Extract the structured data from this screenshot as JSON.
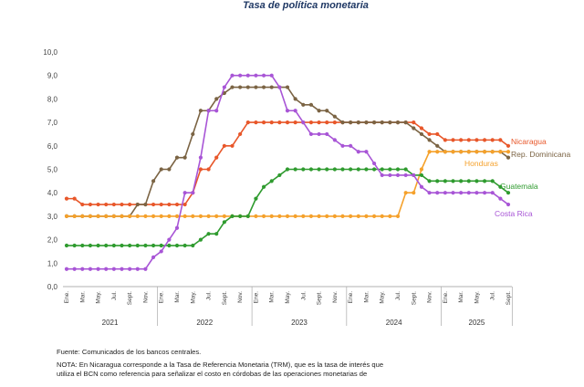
{
  "chart_data": {
    "type": "line",
    "title": "Tasa de política monetaria",
    "xlabel": "",
    "ylabel": "",
    "ylim": [
      0,
      10
    ],
    "yticks": [
      "0,0",
      "1,0",
      "2,0",
      "3,0",
      "4,0",
      "5,0",
      "6,0",
      "7,0",
      "8,0",
      "9,0",
      "10,0"
    ],
    "months": [
      "2021-01",
      "2021-02",
      "2021-03",
      "2021-04",
      "2021-05",
      "2021-06",
      "2021-07",
      "2021-08",
      "2021-09",
      "2021-10",
      "2021-11",
      "2021-12",
      "2022-01",
      "2022-02",
      "2022-03",
      "2022-04",
      "2022-05",
      "2022-06",
      "2022-07",
      "2022-08",
      "2022-09",
      "2022-10",
      "2022-11",
      "2022-12",
      "2023-01",
      "2023-02",
      "2023-03",
      "2023-04",
      "2023-05",
      "2023-06",
      "2023-07",
      "2023-08",
      "2023-09",
      "2023-10",
      "2023-11",
      "2023-12",
      "2024-01",
      "2024-02",
      "2024-03",
      "2024-04",
      "2024-05",
      "2024-06",
      "2024-07",
      "2024-08",
      "2024-09",
      "2024-10",
      "2024-11",
      "2024-12",
      "2025-01",
      "2025-02",
      "2025-03",
      "2025-04",
      "2025-05",
      "2025-06",
      "2025-07",
      "2025-08",
      "2025-09"
    ],
    "x_tick_labels": [
      {
        "index": 0,
        "label": "Ene."
      },
      {
        "index": 2,
        "label": "Mar."
      },
      {
        "index": 4,
        "label": "May."
      },
      {
        "index": 6,
        "label": "Jul."
      },
      {
        "index": 8,
        "label": "Sept."
      },
      {
        "index": 10,
        "label": "Nov."
      },
      {
        "index": 12,
        "label": "Ene."
      },
      {
        "index": 14,
        "label": "Mar."
      },
      {
        "index": 16,
        "label": "May."
      },
      {
        "index": 18,
        "label": "Jul."
      },
      {
        "index": 20,
        "label": "Sept."
      },
      {
        "index": 22,
        "label": "Nov."
      },
      {
        "index": 24,
        "label": "Ene."
      },
      {
        "index": 26,
        "label": "Mar."
      },
      {
        "index": 28,
        "label": "May."
      },
      {
        "index": 30,
        "label": "Jul."
      },
      {
        "index": 32,
        "label": "Sept."
      },
      {
        "index": 34,
        "label": "Nov."
      },
      {
        "index": 36,
        "label": "Ene."
      },
      {
        "index": 38,
        "label": "Mar."
      },
      {
        "index": 40,
        "label": "May."
      },
      {
        "index": 42,
        "label": "Jul."
      },
      {
        "index": 44,
        "label": "Sept."
      },
      {
        "index": 46,
        "label": "Nov."
      },
      {
        "index": 48,
        "label": "Ene."
      },
      {
        "index": 50,
        "label": "Mar."
      },
      {
        "index": 52,
        "label": "May."
      },
      {
        "index": 54,
        "label": "Jul."
      },
      {
        "index": 56,
        "label": "Sept."
      }
    ],
    "years": [
      {
        "label": "2021",
        "start": 0,
        "end": 11
      },
      {
        "label": "2022",
        "start": 12,
        "end": 23
      },
      {
        "label": "2023",
        "start": 24,
        "end": 35
      },
      {
        "label": "2024",
        "start": 36,
        "end": 47
      },
      {
        "label": "2025",
        "start": 48,
        "end": 56
      }
    ],
    "grid": false,
    "legend": "inline labels at line ends (right)",
    "series": [
      {
        "name": "Nicaragua",
        "color": "#e8572a",
        "values": [
          3.75,
          3.75,
          3.5,
          3.5,
          3.5,
          3.5,
          3.5,
          3.5,
          3.5,
          3.5,
          3.5,
          3.5,
          3.5,
          3.5,
          3.5,
          3.5,
          4.0,
          5.0,
          5.0,
          5.5,
          6.0,
          6.0,
          6.5,
          7.0,
          7.0,
          7.0,
          7.0,
          7.0,
          7.0,
          7.0,
          7.0,
          7.0,
          7.0,
          7.0,
          7.0,
          7.0,
          7.0,
          7.0,
          7.0,
          7.0,
          7.0,
          7.0,
          7.0,
          7.0,
          7.0,
          6.75,
          6.5,
          6.5,
          6.25,
          6.25,
          6.25,
          6.25,
          6.25,
          6.25,
          6.25,
          6.25,
          6.0
        ]
      },
      {
        "name": "Rep. Dominicana",
        "color": "#7b6444",
        "values": [
          3.0,
          3.0,
          3.0,
          3.0,
          3.0,
          3.0,
          3.0,
          3.0,
          3.0,
          3.5,
          3.5,
          4.5,
          5.0,
          5.0,
          5.5,
          5.5,
          6.5,
          7.5,
          7.5,
          8.0,
          8.25,
          8.5,
          8.5,
          8.5,
          8.5,
          8.5,
          8.5,
          8.5,
          8.5,
          8.0,
          7.75,
          7.75,
          7.5,
          7.5,
          7.25,
          7.0,
          7.0,
          7.0,
          7.0,
          7.0,
          7.0,
          7.0,
          7.0,
          7.0,
          6.75,
          6.5,
          6.25,
          6.0,
          5.75,
          5.75,
          5.75,
          5.75,
          5.75,
          5.75,
          5.75,
          5.75,
          5.5
        ]
      },
      {
        "name": "Honduras",
        "color": "#f5a12b",
        "values": [
          3.0,
          3.0,
          3.0,
          3.0,
          3.0,
          3.0,
          3.0,
          3.0,
          3.0,
          3.0,
          3.0,
          3.0,
          3.0,
          3.0,
          3.0,
          3.0,
          3.0,
          3.0,
          3.0,
          3.0,
          3.0,
          3.0,
          3.0,
          3.0,
          3.0,
          3.0,
          3.0,
          3.0,
          3.0,
          3.0,
          3.0,
          3.0,
          3.0,
          3.0,
          3.0,
          3.0,
          3.0,
          3.0,
          3.0,
          3.0,
          3.0,
          3.0,
          3.0,
          4.0,
          4.0,
          5.0,
          5.75,
          5.75,
          5.75,
          5.75,
          5.75,
          5.75,
          5.75,
          5.75,
          5.75,
          5.75,
          5.75
        ]
      },
      {
        "name": "Guatemala",
        "color": "#2f9b2f",
        "values": [
          1.75,
          1.75,
          1.75,
          1.75,
          1.75,
          1.75,
          1.75,
          1.75,
          1.75,
          1.75,
          1.75,
          1.75,
          1.75,
          1.75,
          1.75,
          1.75,
          1.75,
          2.0,
          2.25,
          2.25,
          2.75,
          3.0,
          3.0,
          3.0,
          3.75,
          4.25,
          4.5,
          4.75,
          5.0,
          5.0,
          5.0,
          5.0,
          5.0,
          5.0,
          5.0,
          5.0,
          5.0,
          5.0,
          5.0,
          5.0,
          5.0,
          5.0,
          5.0,
          5.0,
          4.75,
          4.75,
          4.5,
          4.5,
          4.5,
          4.5,
          4.5,
          4.5,
          4.5,
          4.5,
          4.5,
          4.25,
          4.0
        ]
      },
      {
        "name": "Costa Rica",
        "color": "#a855d6",
        "values": [
          0.75,
          0.75,
          0.75,
          0.75,
          0.75,
          0.75,
          0.75,
          0.75,
          0.75,
          0.75,
          0.75,
          1.25,
          1.5,
          2.0,
          2.5,
          4.0,
          4.0,
          5.5,
          7.5,
          7.5,
          8.5,
          9.0,
          9.0,
          9.0,
          9.0,
          9.0,
          9.0,
          8.5,
          7.5,
          7.5,
          7.0,
          6.5,
          6.5,
          6.5,
          6.25,
          6.0,
          6.0,
          5.75,
          5.75,
          5.25,
          4.75,
          4.75,
          4.75,
          4.75,
          4.75,
          4.25,
          4.0,
          4.0,
          4.0,
          4.0,
          4.0,
          4.0,
          4.0,
          4.0,
          4.0,
          3.75,
          3.5
        ]
      }
    ]
  },
  "notes": {
    "source": "Fuente: Comunicados de los bancos centrales.",
    "nota_line1": "NOTA: En Nicaragua corresponde a la Tasa de Referencia Monetaria (TRM), que es la tasa de interés que",
    "nota_line2": "utiliza el BCN como referencia para señalizar el costo en córdobas de las operaciones monetarias de"
  }
}
